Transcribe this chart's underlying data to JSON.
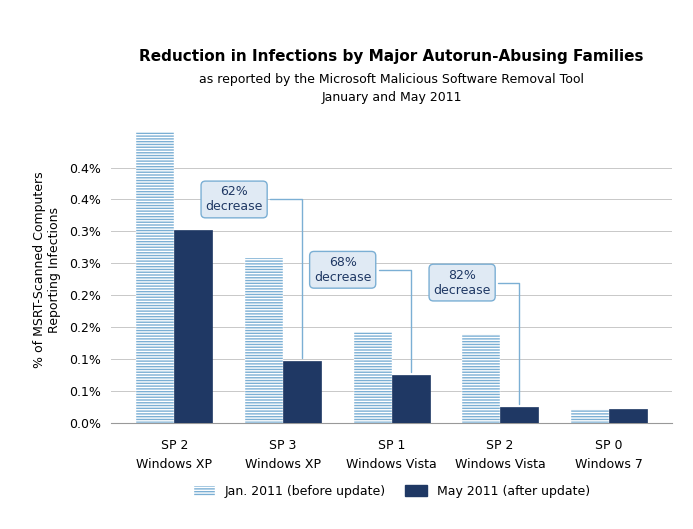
{
  "title": "Reduction in Infections by Major Autorun-Abusing Families",
  "subtitle1": "as reported by the Microsoft Malicious Software Removal Tool",
  "subtitle2": "January and May 2011",
  "cat_line1": [
    "SP 2",
    "SP 3",
    "SP 1",
    "SP 2",
    "SP 0"
  ],
  "cat_line2": [
    "Windows XP",
    "Windows XP",
    "Windows Vista",
    "Windows Vista",
    "Windows 7"
  ],
  "jan_values": [
    0.00455,
    0.00258,
    0.00143,
    0.0014,
    0.00022
  ],
  "may_values": [
    0.00302,
    0.00098,
    0.00075,
    0.00025,
    0.00022
  ],
  "bar_color_jan": "#7BAFD4",
  "bar_color_may": "#1F3864",
  "ylabel": "% of MSRT-Scanned Computers\nReporting Infections",
  "ylim": [
    0,
    0.0048
  ],
  "yticks": [
    0.0,
    0.0005,
    0.001,
    0.0015,
    0.002,
    0.0025,
    0.003,
    0.0035,
    0.004
  ],
  "ytick_labels": [
    "0.0%",
    "0.1%",
    "0.1%",
    "0.2%",
    "0.2%",
    "0.3%",
    "0.3%",
    "0.4%",
    "0.4%"
  ],
  "legend_jan": "Jan. 2011 (before update)",
  "legend_may": "May 2011 (after update)",
  "background_color": "#FFFFFF",
  "grid_color": "#C8C8C8",
  "annotation_box_color": "#E0EAF4",
  "annotation_border_color": "#7BAFD4",
  "annotation_text_color": "#1F3864"
}
